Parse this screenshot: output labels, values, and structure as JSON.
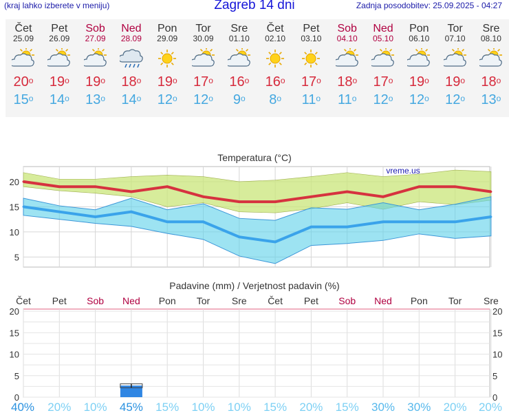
{
  "header": {
    "left": "(kraj lahko izberete v meniju)",
    "title": "Zagreb 14 dni",
    "right": "Zadnja posodobitev: 25.09.2025 - 04:27"
  },
  "days": [
    {
      "name": "Čet",
      "date": "25.09",
      "weekend": false,
      "icon": "sun-cloud-icon",
      "max": "20",
      "min": "15"
    },
    {
      "name": "Pet",
      "date": "26.09",
      "weekend": false,
      "icon": "sun-cloud-icon",
      "max": "19",
      "min": "14"
    },
    {
      "name": "Sob",
      "date": "27.09",
      "weekend": true,
      "icon": "sun-cloud-icon",
      "max": "19",
      "min": "13"
    },
    {
      "name": "Ned",
      "date": "28.09",
      "weekend": true,
      "icon": "rain-cloud-icon",
      "max": "18",
      "min": "14"
    },
    {
      "name": "Pon",
      "date": "29.09",
      "weekend": false,
      "icon": "sun-icon",
      "max": "19",
      "min": "12"
    },
    {
      "name": "Tor",
      "date": "30.09",
      "weekend": false,
      "icon": "sun-cloud-icon",
      "max": "17",
      "min": "12"
    },
    {
      "name": "Sre",
      "date": "01.10",
      "weekend": false,
      "icon": "sun-cloud-icon",
      "max": "16",
      "min": "9"
    },
    {
      "name": "Čet",
      "date": "02.10",
      "weekend": false,
      "icon": "sun-icon",
      "max": "16",
      "min": "8"
    },
    {
      "name": "Pet",
      "date": "03.10",
      "weekend": false,
      "icon": "sun-icon",
      "max": "17",
      "min": "11"
    },
    {
      "name": "Sob",
      "date": "04.10",
      "weekend": true,
      "icon": "sun-cloud-icon",
      "max": "18",
      "min": "11"
    },
    {
      "name": "Ned",
      "date": "05.10",
      "weekend": true,
      "icon": "sun-cloud-icon",
      "max": "17",
      "min": "12"
    },
    {
      "name": "Pon",
      "date": "06.10",
      "weekend": false,
      "icon": "sun-cloud-icon",
      "max": "19",
      "min": "12"
    },
    {
      "name": "Tor",
      "date": "07.10",
      "weekend": false,
      "icon": "sun-cloud-icon",
      "max": "19",
      "min": "12"
    },
    {
      "name": "Sre",
      "date": "08.10",
      "weekend": false,
      "icon": "sun-cloud-icon",
      "max": "18",
      "min": "13"
    }
  ],
  "chart_data": [
    {
      "type": "line",
      "title": "Temperatura",
      "unit": "(°C)",
      "watermark": "vreme.us",
      "categories": [
        "25.09",
        "26.09",
        "27.09",
        "28.09",
        "29.09",
        "30.09",
        "01.10",
        "02.10",
        "03.10",
        "04.10",
        "05.10",
        "06.10",
        "07.10",
        "08.10"
      ],
      "series": [
        {
          "values": [
            20,
            19,
            19,
            18,
            19,
            17,
            16,
            16,
            17,
            18,
            17,
            19,
            19,
            18
          ],
          "color": "#d6323f"
        },
        {
          "values": [
            15,
            14,
            13,
            14,
            12,
            12,
            9,
            8,
            11,
            11,
            12,
            12,
            12,
            13
          ],
          "color": "#3aa3ea"
        }
      ],
      "max_band_upper": [
        21.8,
        20.5,
        20.5,
        21,
        21.3,
        21,
        20,
        20.3,
        21,
        21.8,
        21,
        21.5,
        22.3,
        22
      ],
      "max_band_lower": [
        19,
        18.2,
        17.7,
        17,
        15,
        15.8,
        14,
        13.8,
        14.6,
        15.8,
        14.5,
        16,
        15.4,
        16.3
      ],
      "min_band_upper": [
        16.7,
        15.2,
        14.4,
        16.7,
        14.4,
        15.6,
        12.7,
        12.3,
        14.8,
        14.5,
        15.8,
        14.4,
        15.5,
        17
      ],
      "min_band_lower": [
        13.3,
        12.5,
        11.7,
        11.1,
        9.7,
        8.5,
        5.2,
        3.7,
        7.3,
        7.7,
        8.3,
        9.6,
        8.7,
        9.2
      ],
      "yticks": [
        5,
        10,
        15,
        20
      ],
      "ylim": [
        3,
        23
      ],
      "grid": true
    },
    {
      "type": "bar",
      "title": "Padavine (mm) / Verjetnost padavin (%)",
      "day_labels": [
        "Čet",
        "Pet",
        "Sob",
        "Ned",
        "Pon",
        "Tor",
        "Sre",
        "Čet",
        "Pet",
        "Sob",
        "Ned",
        "Pon",
        "Tor",
        "Sre"
      ],
      "weekend": [
        false,
        false,
        true,
        true,
        false,
        false,
        false,
        false,
        false,
        true,
        true,
        false,
        false,
        false
      ],
      "values": [
        0,
        0,
        0,
        2.7,
        0,
        0,
        0,
        0,
        0,
        0,
        0,
        0,
        0,
        0
      ],
      "value_upper": [
        0,
        0,
        0,
        3.1,
        0,
        0,
        0,
        0,
        0,
        0,
        0,
        0,
        0,
        0
      ],
      "value_lower": [
        0,
        0,
        0,
        2.2,
        0,
        0,
        0,
        0,
        0,
        0,
        0,
        0,
        0,
        0
      ],
      "probability": [
        "40%",
        "20%",
        "10%",
        "45%",
        "15%",
        "10%",
        "10%",
        "15%",
        "20%",
        "15%",
        "30%",
        "30%",
        "20%",
        "20%"
      ],
      "yticks": [
        0,
        5,
        10,
        15,
        20
      ],
      "ylim": [
        0,
        20.5
      ],
      "color": "#2f86e3",
      "grid": true
    }
  ]
}
